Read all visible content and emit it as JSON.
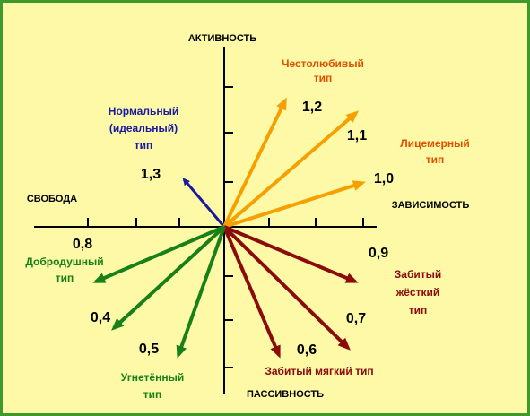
{
  "axes": {
    "top": "АКТИВНОСТЬ",
    "right": "ЗАВИСИМОСТЬ",
    "left": "СВОБОДА",
    "bottom": "ПАССИВНОСТЬ"
  },
  "type_labels": [
    [
      "Нормальный",
      "(идеальный)",
      "тип"
    ],
    [
      "Честолюбивый",
      "тип"
    ],
    [
      "Лицемерный",
      "тип"
    ],
    [
      "Забитый",
      "жёсткий",
      "тип"
    ],
    [
      "Забитый мягкий тип"
    ],
    [
      "Угнетённый",
      "тип"
    ],
    [
      "Добродушный",
      "тип"
    ]
  ],
  "numbers": [
    "1,3",
    "1,2",
    "1,1",
    "1,0",
    "0,9",
    "0,7",
    "0,6",
    "0,5",
    "0,4",
    "0,8"
  ]
}
